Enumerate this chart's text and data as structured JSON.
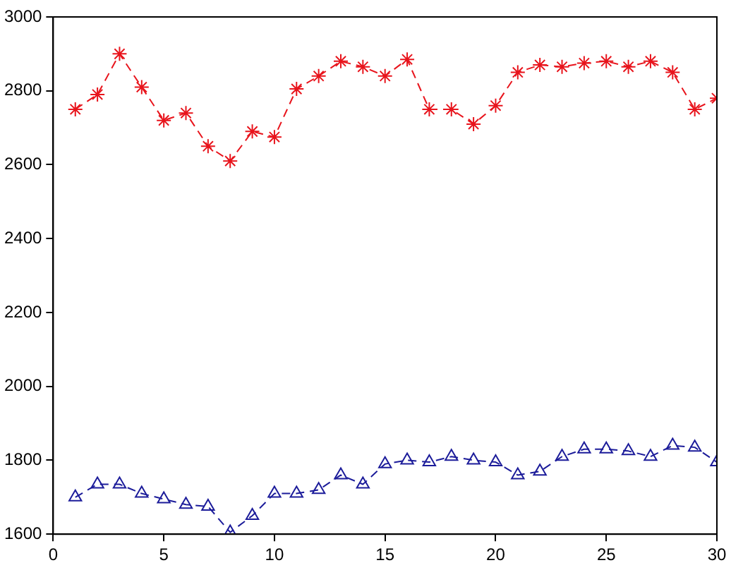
{
  "chart_data": {
    "type": "line",
    "x": [
      1,
      2,
      3,
      4,
      5,
      6,
      7,
      8,
      9,
      10,
      11,
      12,
      13,
      14,
      15,
      16,
      17,
      18,
      19,
      20,
      21,
      22,
      23,
      24,
      25,
      26,
      27,
      28,
      29,
      30
    ],
    "series": [
      {
        "color": "#e8141c",
        "marker": "cross",
        "line_style": "dashed",
        "values": [
          2750,
          2790,
          2900,
          2810,
          2720,
          2740,
          2650,
          2610,
          2690,
          2675,
          2805,
          2840,
          2880,
          2865,
          2840,
          2885,
          2750,
          2750,
          2710,
          2760,
          2850,
          2870,
          2865,
          2875,
          2880,
          2865,
          2880,
          2850,
          2750,
          2780
        ]
      },
      {
        "color": "#1c1c9a",
        "marker": "triangle",
        "line_style": "dashed",
        "values": [
          1700,
          1735,
          1735,
          1710,
          1695,
          1680,
          1675,
          1605,
          1650,
          1710,
          1710,
          1720,
          1760,
          1735,
          1790,
          1800,
          1795,
          1810,
          1800,
          1795,
          1760,
          1770,
          1810,
          1830,
          1830,
          1825,
          1810,
          1840,
          1835,
          1795
        ]
      }
    ],
    "xlim": [
      0,
      30
    ],
    "xticks": [
      0,
      5,
      10,
      15,
      20,
      25,
      30
    ],
    "ylim": [
      1600,
      3000
    ],
    "yticks": [
      1600,
      1800,
      2000,
      2200,
      2400,
      2600,
      2800,
      3000
    ],
    "grid": false,
    "legend": false
  }
}
